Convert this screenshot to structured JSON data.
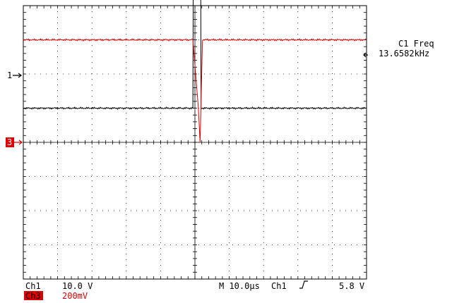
{
  "chart_data": {
    "type": "line",
    "title": "",
    "xlabel": "",
    "ylabel": "",
    "grid": true,
    "x_divisions": 10,
    "y_divisions": 8,
    "xlim": [
      -50,
      50
    ],
    "x_unit": "µs",
    "series": [
      {
        "name": "Ch1",
        "marker": "1",
        "color": "#000000",
        "volts_per_div": 10.0,
        "baseline_div": 3.0,
        "x": [
          -50,
          -0.6,
          -0.4,
          1.6,
          1.8,
          50
        ],
        "y": [
          0,
          0,
          70,
          70,
          0,
          0
        ]
      },
      {
        "name": "Ch3",
        "marker": "3",
        "color": "#e00000",
        "volts_per_div": 0.2,
        "baseline_div": 1.0,
        "x": [
          -50,
          -0.6,
          1.0,
          1.5,
          2.2,
          50
        ],
        "y": [
          0,
          0,
          -0.4,
          -0.6,
          0,
          0
        ]
      }
    ]
  },
  "measurement": {
    "label": "C1 Freq",
    "value": "13.6582kHz"
  },
  "readout": {
    "ch1_label": "Ch1",
    "ch1_scale": "10.0 V",
    "ch3_label": "Ch3",
    "ch3_scale": "200mV",
    "timebase": "M 10.0µs",
    "trigger_channel": "Ch1",
    "trigger_slope_icon": "rising-edge-icon",
    "trigger_level": "5.8 V"
  },
  "colors": {
    "ch1": "#000000",
    "ch3": "#e00000",
    "grid": "#000000",
    "background": "#ffffff"
  }
}
